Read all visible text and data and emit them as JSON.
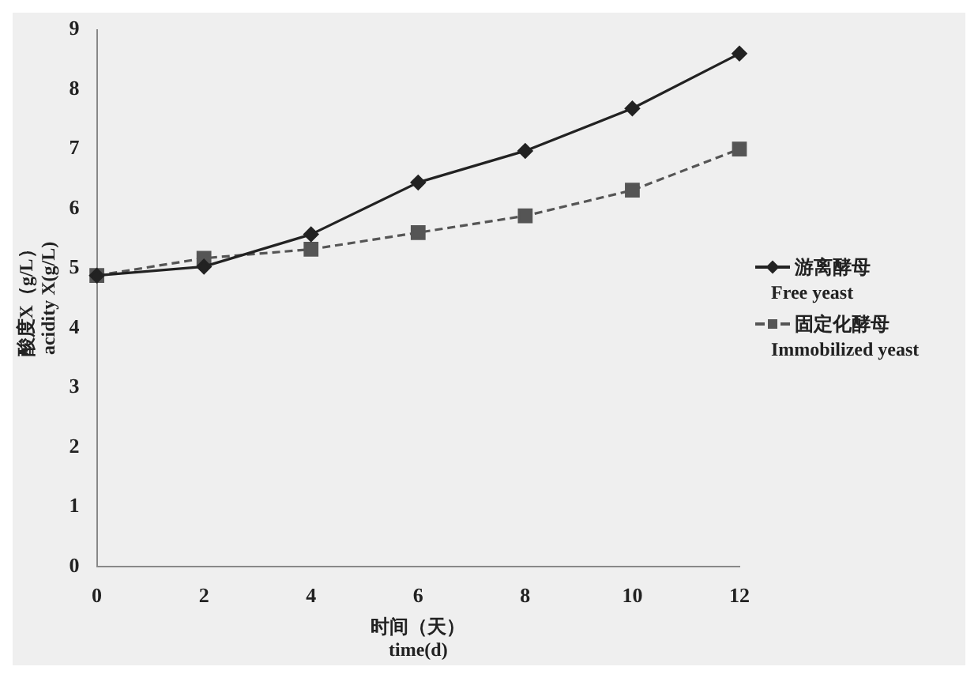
{
  "chart_data": {
    "type": "line",
    "xlabel": "时间（天）\ntime(d)",
    "ylabel": "酸度X（g/L）\nacidity X(g/L)",
    "categories": [
      "0",
      "2",
      "4",
      "6",
      "8",
      "10",
      "12"
    ],
    "series": [
      {
        "name": "游离酵母\nFree yeast",
        "color": "#222222",
        "marker": "diamond",
        "line_style": "solid",
        "values": [
          4.88,
          5.03,
          5.57,
          6.44,
          6.97,
          7.68,
          8.6
        ]
      },
      {
        "name": "固定化酵母\nImmobilized yeast",
        "color": "#555555",
        "marker": "square",
        "line_style": "dashed",
        "values": [
          4.88,
          5.17,
          5.32,
          5.6,
          5.88,
          6.31,
          7.0
        ]
      }
    ],
    "ylim": [
      0,
      9
    ],
    "yticks": [
      0,
      1,
      2,
      3,
      4,
      5,
      6,
      7,
      8,
      9
    ],
    "grid": false,
    "legend": "right"
  }
}
